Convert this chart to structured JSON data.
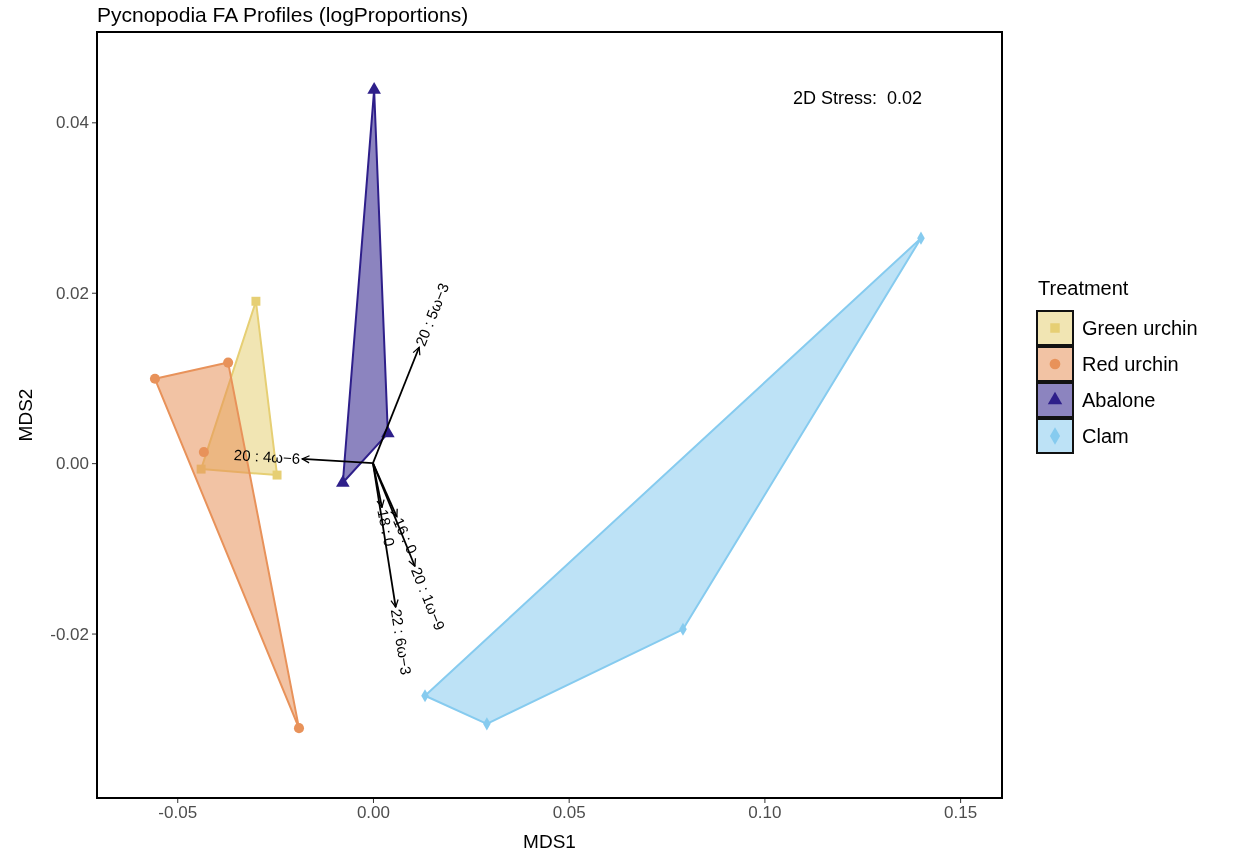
{
  "chart_data": {
    "type": "scatter",
    "title": "Pycnopodia FA Profiles (logProportions)",
    "xlabel": "MDS1",
    "ylabel": "MDS2",
    "legend_title": "Treatment",
    "legend": "right",
    "grid": false,
    "xlim": [
      -0.0705,
      0.1607
    ],
    "ylim": [
      -0.0393,
      0.0506
    ],
    "xticks": [
      -0.05,
      {
        "value": 0,
        "label": "0.00"
      },
      0.05,
      {
        "value": 0.1,
        "label": "0.10"
      },
      0.15
    ],
    "yticks": [
      -0.02,
      {
        "value": 0,
        "label": "0.00"
      },
      0.02,
      0.04
    ],
    "series": [
      {
        "name": "Green urchin",
        "color": "#e6cf74",
        "marker": "square",
        "x": [
          -0.0299,
          -0.0439,
          -0.0245
        ],
        "values": [
          0.019,
          -0.0007,
          -0.0014
        ]
      },
      {
        "name": "Red urchin",
        "color": "#e8925a",
        "marker": "circle",
        "x": [
          -0.0557,
          -0.037,
          -0.0432,
          -0.0189
        ],
        "values": [
          0.0099,
          0.0118,
          0.0013,
          -0.0311
        ]
      },
      {
        "name": "Abalone",
        "color": "#2e1f8a",
        "marker": "triangle",
        "x": [
          0.0003,
          0.0038,
          -0.0077
        ],
        "values": [
          0.0438,
          0.0035,
          -0.0023
        ]
      },
      {
        "name": "Clam",
        "color": "#86cbef",
        "marker": "diamond",
        "x": [
          0.14,
          0.0792,
          0.0291,
          0.0133
        ],
        "values": [
          0.0264,
          -0.0195,
          -0.0306,
          -0.0273
        ]
      },
      {
        "type": "line",
        "name": "20 : 5ω−3",
        "color": "#000000",
        "x": [
          0,
          0.0118
        ],
        "values": [
          0,
          0.0136
        ]
      },
      {
        "type": "line",
        "name": "20 : 4ω−6",
        "color": "#000000",
        "x": [
          0,
          -0.0181
        ],
        "values": [
          0,
          0.0005
        ]
      },
      {
        "type": "line",
        "name": "18 : 0",
        "color": "#000000",
        "x": [
          0,
          0.0023
        ],
        "values": [
          0,
          -0.0052
        ]
      },
      {
        "type": "line",
        "name": "16 : 0",
        "color": "#000000",
        "x": [
          0,
          0.0061
        ],
        "values": [
          0,
          -0.0063
        ]
      },
      {
        "type": "line",
        "name": "20 : 1ω−9",
        "color": "#000000",
        "x": [
          0,
          0.0107
        ],
        "values": [
          0,
          -0.0121
        ]
      },
      {
        "type": "line",
        "name": "22 : 6ω−3",
        "color": "#000000",
        "x": [
          0,
          0.0058
        ],
        "values": [
          0,
          -0.0169
        ]
      }
    ],
    "annotations": [
      "2D Stress:  0.02"
    ]
  }
}
